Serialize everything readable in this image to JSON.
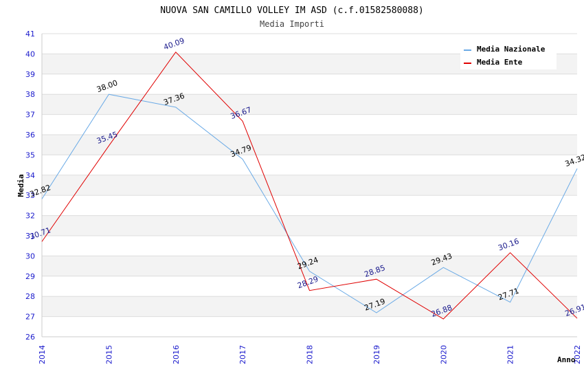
{
  "chart_data": {
    "type": "line",
    "title": "NUOVA SAN CAMILLO VOLLEY IM ASD (c.f.01582580088)",
    "subtitle": "Media Importi",
    "xlabel": "Anno",
    "ylabel": "Media",
    "ylim": [
      26,
      41
    ],
    "yticks": [
      "26",
      "27",
      "28",
      "29",
      "30",
      "31",
      "32",
      "33",
      "34",
      "35",
      "36",
      "37",
      "38",
      "39",
      "40",
      "41"
    ],
    "categories": [
      "2014",
      "2015",
      "2016",
      "2017",
      "2018",
      "2019",
      "2020",
      "2021",
      "2022"
    ],
    "legend_position": "top-right",
    "series": [
      {
        "name": "Media Nazionale",
        "color": "#6aaae6",
        "label_color": "#000000",
        "values": [
          32.82,
          38.0,
          37.36,
          34.79,
          29.24,
          27.19,
          29.43,
          27.71,
          34.32
        ],
        "labels": [
          "32.82",
          "38.00",
          "37.36",
          "34.79",
          "29.24",
          "27.19",
          "29.43",
          "27.71",
          "34.32"
        ]
      },
      {
        "name": "Media Ente",
        "color": "#e00000",
        "label_color": "#1a1a8c",
        "values": [
          30.71,
          35.45,
          40.09,
          36.67,
          28.29,
          28.85,
          26.88,
          30.16,
          26.91
        ],
        "labels": [
          "30.71",
          "35.45",
          "40.09",
          "36.67",
          "28.29",
          "28.85",
          "26.88",
          "30.16",
          "26.91"
        ]
      }
    ]
  }
}
